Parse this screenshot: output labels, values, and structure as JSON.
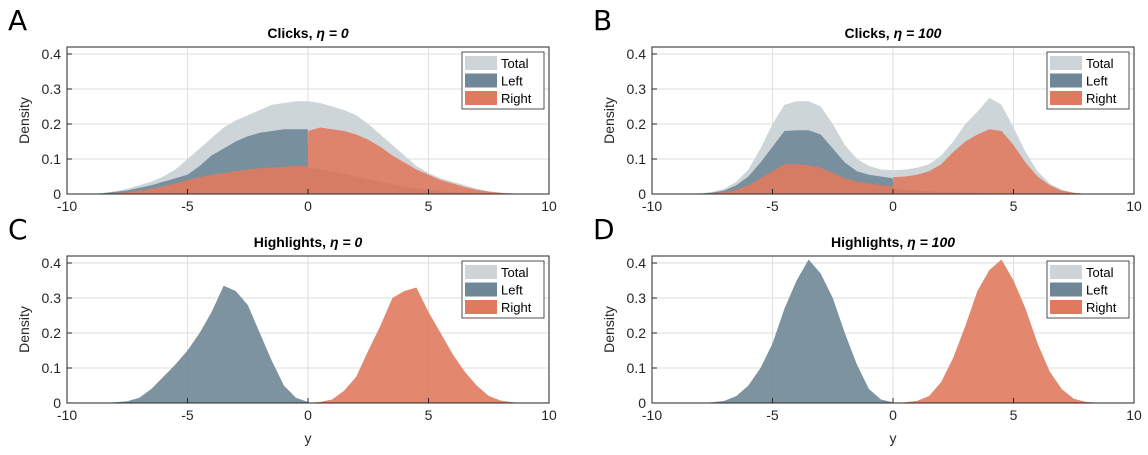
{
  "colors": {
    "total": "#cdd5d9",
    "left": "#6f8796",
    "right": "#e07a5f",
    "grid": "#dedede",
    "axis": "#262626"
  },
  "chart_data": [
    {
      "panel": "A",
      "type": "area",
      "title": "Clicks,",
      "eta_label": "η = 0",
      "xlabel": "",
      "ylabel": "Density",
      "xlim": [
        -10,
        10
      ],
      "ylim": [
        0,
        0.42
      ],
      "xticks": [
        "-10",
        "-5",
        "0",
        "5",
        "10"
      ],
      "yticks": [
        "0",
        "0.1",
        "0.2",
        "0.3",
        "0.4"
      ],
      "grid": true,
      "legend": "top-right",
      "x": [
        -10,
        -9.5,
        -9,
        -8.5,
        -8,
        -7.5,
        -7,
        -6.5,
        -6,
        -5.5,
        -5,
        -4.5,
        -4,
        -3.5,
        -3,
        -2.5,
        -2,
        -1.5,
        -1,
        -0.5,
        -0.01,
        0.01,
        0.5,
        1,
        1.5,
        2,
        2.5,
        3,
        3.5,
        4,
        4.5,
        5,
        5.5,
        6,
        6.5,
        7,
        7.5,
        8,
        8.5,
        9,
        9.5,
        10
      ],
      "series": [
        {
          "name": "Total",
          "key": "total",
          "values": [
            0,
            0,
            0,
            0.003,
            0.008,
            0.015,
            0.025,
            0.035,
            0.05,
            0.07,
            0.1,
            0.13,
            0.16,
            0.19,
            0.21,
            0.225,
            0.24,
            0.255,
            0.26,
            0.265,
            0.265,
            0.265,
            0.26,
            0.25,
            0.24,
            0.225,
            0.2,
            0.17,
            0.14,
            0.11,
            0.08,
            0.06,
            0.045,
            0.035,
            0.025,
            0.015,
            0.008,
            0.004,
            0.002,
            0,
            0,
            0
          ]
        },
        {
          "name": "Left",
          "key": "left",
          "values": [
            0,
            0,
            0,
            0.002,
            0.006,
            0.01,
            0.018,
            0.025,
            0.035,
            0.045,
            0.055,
            0.08,
            0.11,
            0.13,
            0.15,
            0.165,
            0.175,
            0.18,
            0.185,
            0.185,
            0.185,
            0.075,
            0.07,
            0.065,
            0.058,
            0.05,
            0.042,
            0.035,
            0.028,
            0.022,
            0.016,
            0.012,
            0.008,
            0.005,
            0.003,
            0.002,
            0.001,
            0,
            0,
            0,
            0,
            0
          ]
        },
        {
          "name": "Right",
          "key": "right",
          "values": [
            0,
            0,
            0,
            0,
            0.002,
            0.005,
            0.01,
            0.015,
            0.022,
            0.03,
            0.04,
            0.048,
            0.055,
            0.06,
            0.065,
            0.07,
            0.073,
            0.076,
            0.078,
            0.08,
            0.08,
            0.18,
            0.19,
            0.185,
            0.18,
            0.17,
            0.155,
            0.135,
            0.11,
            0.09,
            0.07,
            0.055,
            0.04,
            0.03,
            0.02,
            0.012,
            0.007,
            0.003,
            0.001,
            0,
            0,
            0
          ]
        }
      ]
    },
    {
      "panel": "B",
      "type": "area",
      "title": "Clicks,",
      "eta_label": "η = 100",
      "xlabel": "",
      "ylabel": "Density",
      "xlim": [
        -10,
        10
      ],
      "ylim": [
        0,
        0.42
      ],
      "xticks": [
        "-10",
        "-5",
        "0",
        "5",
        "10"
      ],
      "yticks": [
        "0",
        "0.1",
        "0.2",
        "0.3",
        "0.4"
      ],
      "grid": true,
      "legend": "top-right",
      "x": [
        -10,
        -9.5,
        -9,
        -8.5,
        -8,
        -7.5,
        -7,
        -6.5,
        -6,
        -5.5,
        -5,
        -4.5,
        -4,
        -3.5,
        -3,
        -2.5,
        -2,
        -1.5,
        -1,
        -0.5,
        -0.01,
        0.01,
        0.5,
        1,
        1.5,
        2,
        2.5,
        3,
        3.5,
        4,
        4.5,
        5,
        5.5,
        6,
        6.5,
        7,
        7.5,
        8,
        8.5,
        9,
        9.5,
        10
      ],
      "series": [
        {
          "name": "Total",
          "key": "total",
          "values": [
            0,
            0,
            0,
            0,
            0.002,
            0.006,
            0.015,
            0.035,
            0.07,
            0.13,
            0.2,
            0.255,
            0.265,
            0.265,
            0.25,
            0.2,
            0.14,
            0.1,
            0.08,
            0.07,
            0.068,
            0.068,
            0.07,
            0.075,
            0.085,
            0.11,
            0.15,
            0.2,
            0.235,
            0.275,
            0.255,
            0.19,
            0.12,
            0.065,
            0.03,
            0.012,
            0.004,
            0.001,
            0,
            0,
            0,
            0
          ]
        },
        {
          "name": "Left",
          "key": "left",
          "values": [
            0,
            0,
            0,
            0,
            0.001,
            0.004,
            0.01,
            0.025,
            0.05,
            0.09,
            0.135,
            0.18,
            0.182,
            0.182,
            0.17,
            0.13,
            0.09,
            0.065,
            0.055,
            0.05,
            0.045,
            0.015,
            0.012,
            0.01,
            0.008,
            0.006,
            0.005,
            0.004,
            0.003,
            0.002,
            0.001,
            0.001,
            0,
            0,
            0,
            0,
            0,
            0,
            0,
            0,
            0,
            0
          ]
        },
        {
          "name": "Right",
          "key": "right",
          "values": [
            0,
            0,
            0,
            0,
            0,
            0.002,
            0.005,
            0.012,
            0.025,
            0.045,
            0.065,
            0.085,
            0.085,
            0.082,
            0.075,
            0.06,
            0.045,
            0.035,
            0.03,
            0.025,
            0.022,
            0.048,
            0.05,
            0.055,
            0.065,
            0.085,
            0.12,
            0.15,
            0.17,
            0.185,
            0.18,
            0.14,
            0.09,
            0.05,
            0.025,
            0.01,
            0.003,
            0.001,
            0,
            0,
            0,
            0
          ]
        }
      ]
    },
    {
      "panel": "C",
      "type": "area",
      "title": "Highlights,",
      "eta_label": "η = 0",
      "xlabel": "y",
      "ylabel": "Density",
      "xlim": [
        -10,
        10
      ],
      "ylim": [
        0,
        0.42
      ],
      "xticks": [
        "-10",
        "-5",
        "0",
        "5",
        "10"
      ],
      "yticks": [
        "0",
        "0.1",
        "0.2",
        "0.3",
        "0.4"
      ],
      "grid": true,
      "legend": "top-right",
      "x": [
        -10,
        -9.5,
        -9,
        -8.5,
        -8,
        -7.5,
        -7,
        -6.5,
        -6,
        -5.5,
        -5,
        -4.5,
        -4,
        -3.5,
        -3,
        -2.5,
        -2,
        -1.5,
        -1,
        -0.5,
        -0.01,
        0.01,
        0.5,
        1,
        1.5,
        2,
        2.5,
        3,
        3.5,
        4,
        4.5,
        5,
        5.5,
        6,
        6.5,
        7,
        7.5,
        8,
        8.5,
        9,
        9.5,
        10
      ],
      "series": [
        {
          "name": "Total",
          "key": "total",
          "values": [
            0,
            0,
            0,
            0,
            0,
            0,
            0,
            0,
            0,
            0,
            0,
            0,
            0,
            0,
            0,
            0,
            0,
            0,
            0,
            0,
            0,
            0,
            0,
            0,
            0,
            0,
            0,
            0,
            0,
            0,
            0,
            0,
            0,
            0,
            0,
            0,
            0,
            0,
            0,
            0,
            0,
            0
          ]
        },
        {
          "name": "Left",
          "key": "left",
          "values": [
            0,
            0,
            0,
            0,
            0.002,
            0.005,
            0.015,
            0.04,
            0.075,
            0.11,
            0.15,
            0.2,
            0.26,
            0.335,
            0.32,
            0.28,
            0.2,
            0.12,
            0.05,
            0.015,
            0.003,
            0,
            0,
            0,
            0,
            0,
            0,
            0,
            0,
            0,
            0,
            0,
            0,
            0,
            0,
            0,
            0,
            0,
            0,
            0,
            0,
            0
          ]
        },
        {
          "name": "Right",
          "key": "right",
          "values": [
            0,
            0,
            0,
            0,
            0,
            0,
            0,
            0,
            0,
            0,
            0,
            0,
            0,
            0,
            0,
            0,
            0,
            0,
            0,
            0,
            0,
            0,
            0.003,
            0.01,
            0.035,
            0.075,
            0.15,
            0.22,
            0.3,
            0.32,
            0.33,
            0.26,
            0.2,
            0.14,
            0.09,
            0.05,
            0.02,
            0.007,
            0.002,
            0,
            0,
            0
          ]
        }
      ]
    },
    {
      "panel": "D",
      "type": "area",
      "title": "Highlights,",
      "eta_label": "η = 100",
      "xlabel": "y",
      "ylabel": "Density",
      "xlim": [
        -10,
        10
      ],
      "ylim": [
        0,
        0.42
      ],
      "xticks": [
        "-10",
        "-5",
        "0",
        "5",
        "10"
      ],
      "yticks": [
        "0",
        "0.1",
        "0.2",
        "0.3",
        "0.4"
      ],
      "grid": true,
      "legend": "top-right",
      "x": [
        -10,
        -9.5,
        -9,
        -8.5,
        -8,
        -7.5,
        -7,
        -6.5,
        -6,
        -5.5,
        -5,
        -4.5,
        -4,
        -3.5,
        -3,
        -2.5,
        -2,
        -1.5,
        -1,
        -0.5,
        -0.01,
        0.01,
        0.5,
        1,
        1.5,
        2,
        2.5,
        3,
        3.5,
        4,
        4.5,
        5,
        5.5,
        6,
        6.5,
        7,
        7.5,
        8,
        8.5,
        9,
        9.5,
        10
      ],
      "series": [
        {
          "name": "Total",
          "key": "total",
          "values": [
            0,
            0,
            0,
            0,
            0,
            0,
            0,
            0,
            0,
            0,
            0,
            0,
            0,
            0,
            0,
            0,
            0,
            0,
            0,
            0,
            0,
            0,
            0,
            0,
            0,
            0,
            0,
            0,
            0,
            0,
            0,
            0,
            0,
            0,
            0,
            0,
            0,
            0,
            0,
            0,
            0,
            0
          ]
        },
        {
          "name": "Left",
          "key": "left",
          "values": [
            0,
            0,
            0,
            0,
            0,
            0.002,
            0.006,
            0.02,
            0.05,
            0.1,
            0.17,
            0.27,
            0.35,
            0.41,
            0.37,
            0.3,
            0.2,
            0.11,
            0.04,
            0.01,
            0.002,
            0,
            0,
            0,
            0,
            0,
            0,
            0,
            0,
            0,
            0,
            0,
            0,
            0,
            0,
            0,
            0,
            0,
            0,
            0,
            0,
            0
          ]
        },
        {
          "name": "Right",
          "key": "right",
          "values": [
            0,
            0,
            0,
            0,
            0,
            0,
            0,
            0,
            0,
            0,
            0,
            0,
            0,
            0,
            0,
            0,
            0,
            0,
            0,
            0,
            0,
            0,
            0.002,
            0.006,
            0.02,
            0.06,
            0.13,
            0.22,
            0.32,
            0.38,
            0.41,
            0.35,
            0.27,
            0.17,
            0.09,
            0.04,
            0.012,
            0.003,
            0.001,
            0,
            0,
            0
          ]
        }
      ]
    }
  ]
}
